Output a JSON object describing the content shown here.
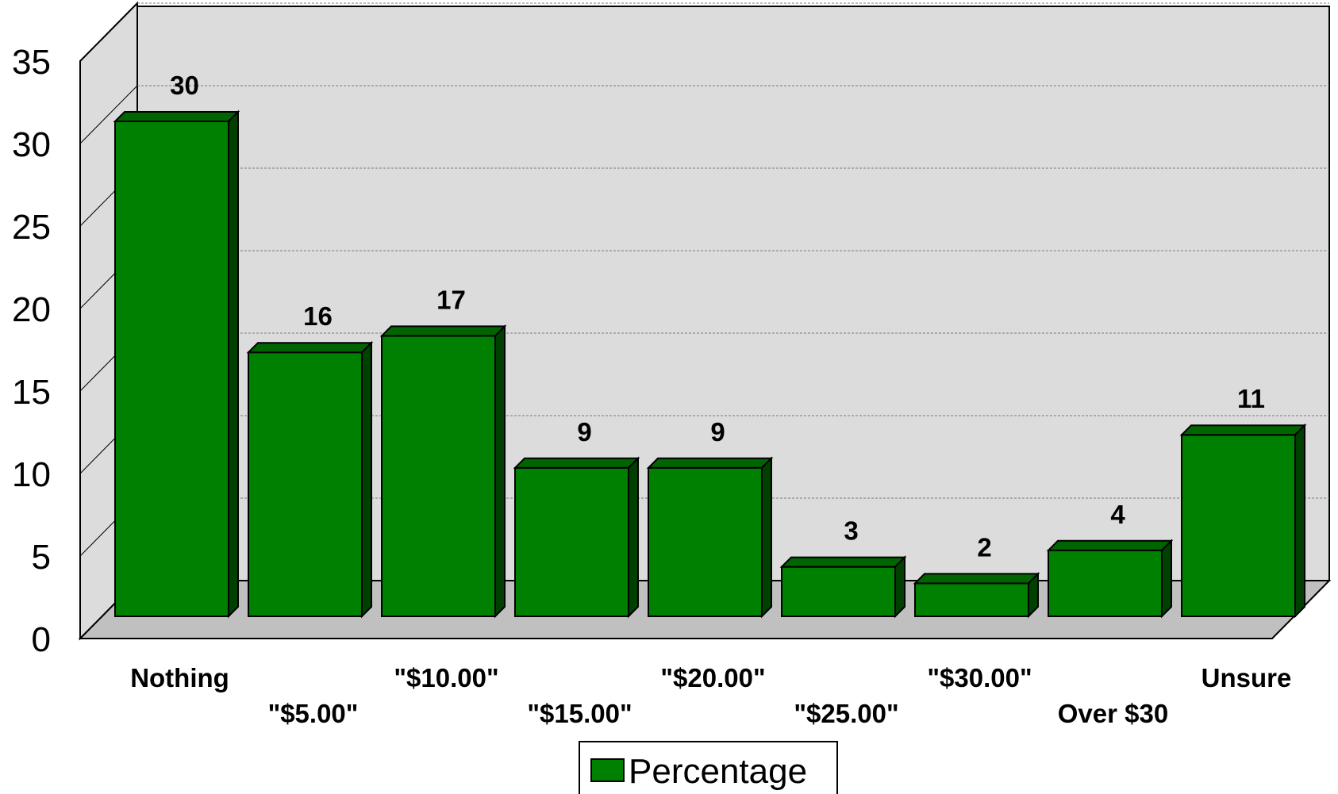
{
  "chart_data": {
    "type": "bar",
    "categories": [
      "Nothing",
      "\"$5.00\"",
      "\"$10.00\"",
      "\"$15.00\"",
      "\"$20.00\"",
      "\"$25.00\"",
      "\"$30.00\"",
      "Over $30",
      "Unsure"
    ],
    "series": [
      {
        "name": "Percentage",
        "values": [
          30,
          16,
          17,
          9,
          9,
          3,
          2,
          4,
          11
        ],
        "color": "#008000"
      }
    ],
    "data_labels": [
      "30",
      "16",
      "17",
      "9",
      "9",
      "3",
      "2",
      "4",
      "11"
    ],
    "yticks": [
      "0",
      "5",
      "10",
      "15",
      "20",
      "25",
      "30",
      "35"
    ],
    "ylim": [
      0,
      35
    ],
    "grid": true,
    "legend": "bottom",
    "style": "3d",
    "colors": {
      "bar_front": "#008000",
      "bar_top": "#006400",
      "bar_side": "#004000",
      "wall": "#dcdcdc",
      "floor": "#c0c0c0"
    }
  }
}
